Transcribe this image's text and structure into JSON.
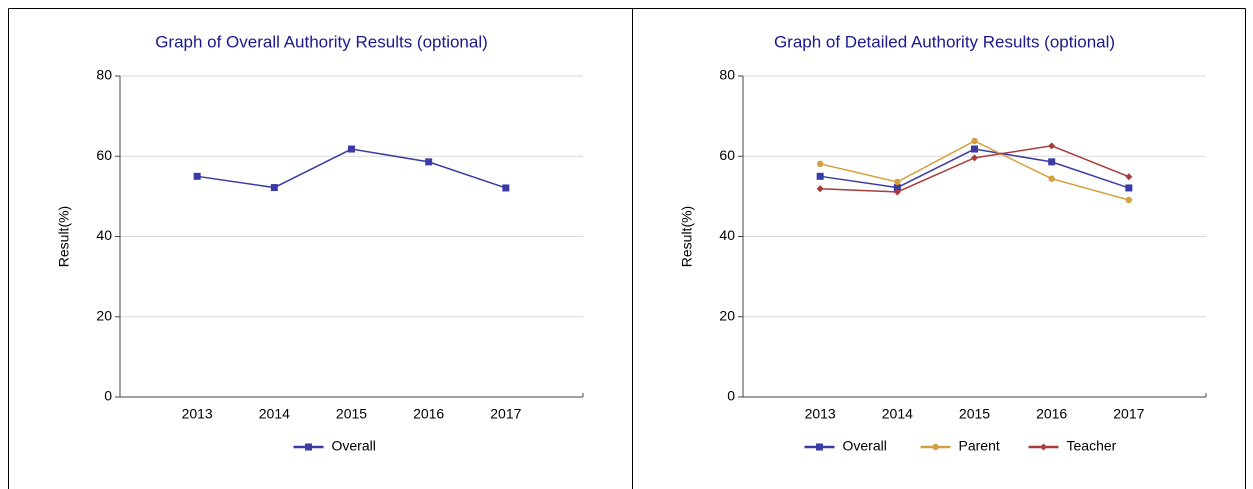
{
  "chart_data": [
    {
      "type": "line",
      "title": "Graph of Overall Authority Results (optional)",
      "ylabel": "Result(%)",
      "categories": [
        "2013",
        "2014",
        "2015",
        "2016",
        "2017"
      ],
      "series": [
        {
          "name": "Overall",
          "color": "#3b3ba6",
          "marker": "square",
          "values": [
            55,
            52.2,
            61.8,
            58.6,
            52.1
          ]
        }
      ],
      "ylim": [
        0,
        80
      ],
      "yticks": [
        0,
        20,
        40,
        60,
        80
      ],
      "grid": true
    },
    {
      "type": "line",
      "title": "Graph of Detailed Authority Results (optional)",
      "ylabel": "Result(%)",
      "categories": [
        "2013",
        "2014",
        "2015",
        "2016",
        "2017"
      ],
      "series": [
        {
          "name": "Overall",
          "color": "#3b3ba6",
          "marker": "square",
          "values": [
            55,
            52.2,
            61.8,
            58.6,
            52.1
          ]
        },
        {
          "name": "Parent",
          "color": "#d4a040",
          "marker": "circle",
          "values": [
            58.1,
            53.6,
            63.8,
            54.4,
            49.1
          ]
        },
        {
          "name": "Teacher",
          "color": "#a83c3c",
          "marker": "diamond",
          "values": [
            51.9,
            51.1,
            59.6,
            62.6,
            54.9
          ]
        }
      ],
      "ylim": [
        0,
        80
      ],
      "yticks": [
        0,
        20,
        40,
        60,
        80
      ],
      "grid": true
    }
  ]
}
